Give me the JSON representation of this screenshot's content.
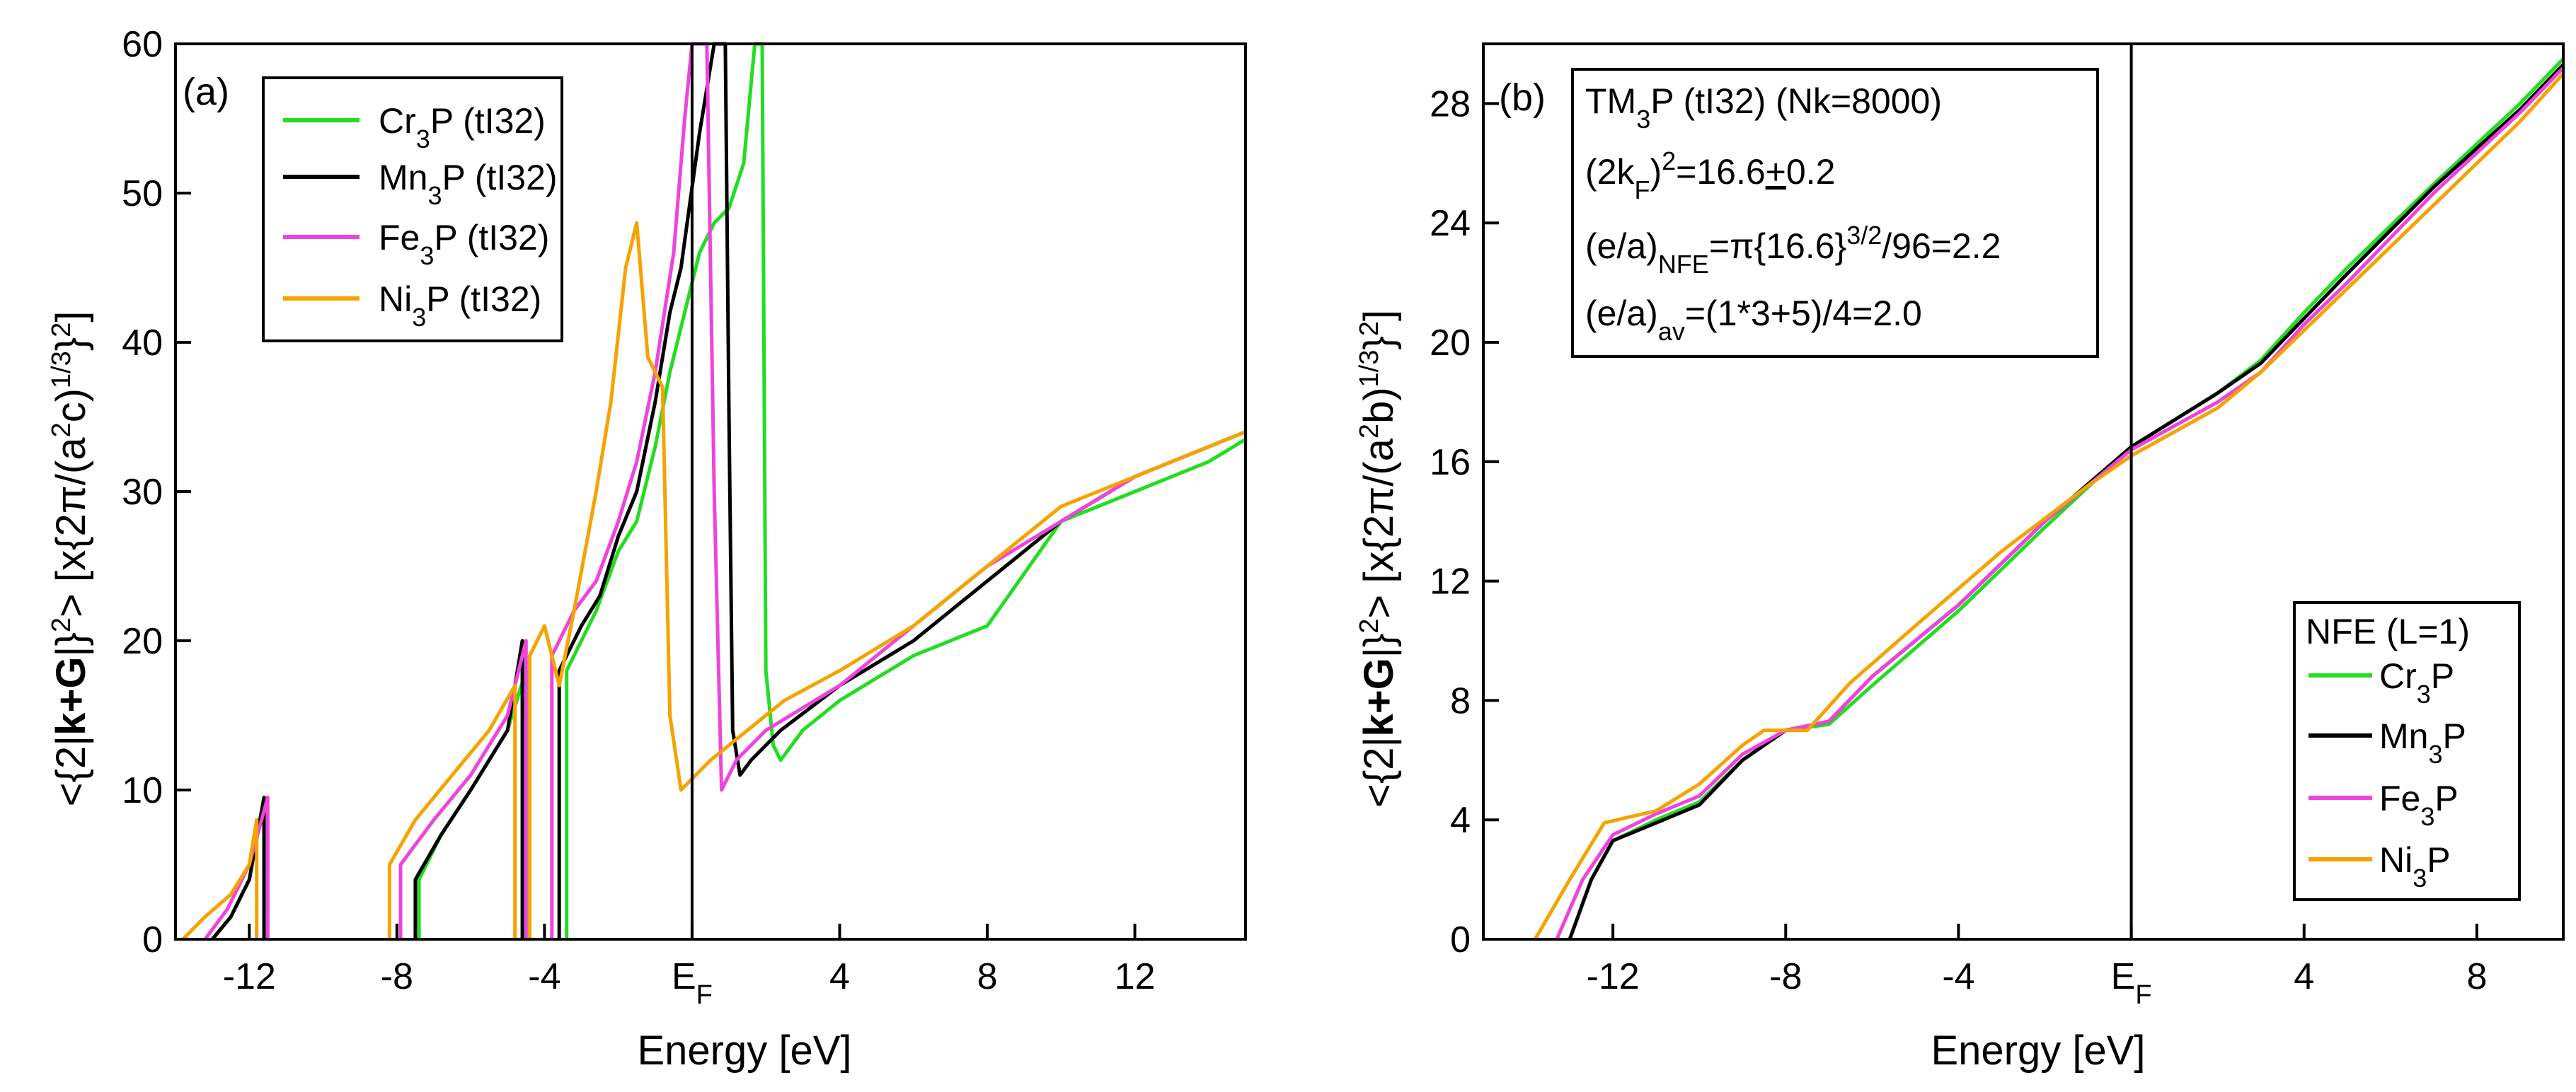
{
  "chart_data": [
    {
      "panel": "(a)",
      "type": "line",
      "xlabel": "Energy [eV]",
      "ylabel": "<{2|k+G|}^2> [x{2π/(a^2c)^1/3}^2]",
      "xlim": [
        -14,
        15
      ],
      "ylim": [
        0,
        60
      ],
      "x_ticks": [
        -12,
        -8,
        -4,
        0,
        4,
        8,
        12
      ],
      "x_tick_labels": [
        "-12",
        "-8",
        "-4",
        "E_F",
        "4",
        "8",
        "12"
      ],
      "y_ticks": [
        0,
        10,
        20,
        30,
        40,
        50,
        60
      ],
      "y_tick_labels": [
        "0",
        "10",
        "20",
        "30",
        "40",
        "50",
        "60"
      ],
      "fermi_line_x": 0,
      "legend": [
        "Cr3P (tI32)",
        "Mn3P (tI32)",
        "Fe3P (tI32)",
        "Ni3P (tI32)"
      ],
      "series": [
        {
          "name": "Cr3P (tI32)",
          "color": "#22dd22",
          "segments": [
            [
              [
                -13.0,
                0
              ],
              [
                -12.5,
                1.5
              ],
              [
                -12.0,
                4
              ],
              [
                -11.6,
                9.5
              ],
              [
                -11.6,
                0
              ]
            ],
            [
              [
                -7.4,
                0
              ],
              [
                -7.4,
                4
              ],
              [
                -6.8,
                7
              ],
              [
                -6.0,
                10
              ],
              [
                -5.0,
                14
              ],
              [
                -4.5,
                18
              ],
              [
                -4.5,
                0
              ]
            ],
            [
              [
                -3.4,
                0
              ],
              [
                -3.4,
                18
              ],
              [
                -3.0,
                20
              ],
              [
                -2.6,
                22
              ],
              [
                -2.0,
                26
              ],
              [
                -1.5,
                28
              ],
              [
                -1.0,
                33
              ],
              [
                -0.6,
                38
              ],
              [
                -0.2,
                42
              ],
              [
                0.2,
                46
              ],
              [
                0.6,
                48
              ],
              [
                1.0,
                49
              ],
              [
                1.4,
                52
              ],
              [
                1.7,
                60
              ],
              [
                1.9,
                60
              ],
              [
                2.0,
                18
              ],
              [
                2.2,
                13
              ],
              [
                2.4,
                12
              ],
              [
                3.0,
                14
              ],
              [
                4.0,
                16
              ],
              [
                6.0,
                19
              ],
              [
                8.0,
                21
              ],
              [
                10.0,
                28
              ],
              [
                12.0,
                30
              ],
              [
                14.0,
                32
              ],
              [
                15.0,
                33.5
              ]
            ]
          ]
        },
        {
          "name": "Mn3P (tI32)",
          "color": "#000000",
          "segments": [
            [
              [
                -13.0,
                0
              ],
              [
                -12.5,
                1.5
              ],
              [
                -12.0,
                4
              ],
              [
                -11.6,
                9.5
              ],
              [
                -11.6,
                0
              ]
            ],
            [
              [
                -7.5,
                0
              ],
              [
                -7.5,
                4
              ],
              [
                -6.8,
                7
              ],
              [
                -6.0,
                10
              ],
              [
                -5.0,
                14
              ],
              [
                -4.6,
                20
              ],
              [
                -4.6,
                0
              ]
            ],
            [
              [
                -3.6,
                0
              ],
              [
                -3.6,
                18
              ],
              [
                -3.0,
                21
              ],
              [
                -2.5,
                23
              ],
              [
                -2.0,
                27
              ],
              [
                -1.5,
                30
              ],
              [
                -1.0,
                36
              ],
              [
                -0.6,
                42
              ],
              [
                -0.3,
                45
              ],
              [
                0.2,
                54
              ],
              [
                0.6,
                60
              ],
              [
                0.9,
                60
              ],
              [
                1.0,
                35
              ],
              [
                1.1,
                14
              ],
              [
                1.3,
                11
              ],
              [
                1.6,
                12
              ],
              [
                2.4,
                14
              ],
              [
                4.0,
                17
              ],
              [
                6.0,
                20
              ],
              [
                8.0,
                24
              ],
              [
                10.0,
                28
              ],
              [
                12.0,
                31
              ],
              [
                14.0,
                33
              ],
              [
                15.0,
                34
              ]
            ]
          ]
        },
        {
          "name": "Fe3P (tI32)",
          "color": "#ee44dd",
          "segments": [
            [
              [
                -13.2,
                0
              ],
              [
                -12.6,
                2
              ],
              [
                -12.0,
                5
              ],
              [
                -11.5,
                9.5
              ],
              [
                -11.5,
                0
              ]
            ],
            [
              [
                -7.9,
                0
              ],
              [
                -7.9,
                5
              ],
              [
                -7.0,
                8
              ],
              [
                -6.0,
                11
              ],
              [
                -5.0,
                15
              ],
              [
                -4.5,
                20
              ],
              [
                -4.5,
                0
              ]
            ],
            [
              [
                -3.8,
                0
              ],
              [
                -3.8,
                19
              ],
              [
                -3.2,
                22
              ],
              [
                -2.6,
                24
              ],
              [
                -2.0,
                28
              ],
              [
                -1.5,
                32
              ],
              [
                -1.0,
                38
              ],
              [
                -0.5,
                46
              ],
              [
                -0.2,
                55
              ],
              [
                0.0,
                60
              ],
              [
                0.4,
                60
              ],
              [
                0.6,
                30
              ],
              [
                0.8,
                10
              ],
              [
                1.2,
                12
              ],
              [
                2.0,
                14
              ],
              [
                4.0,
                17
              ],
              [
                6.0,
                21
              ],
              [
                8.0,
                25
              ],
              [
                10.0,
                28
              ],
              [
                12.0,
                31
              ],
              [
                14.0,
                33
              ],
              [
                15.0,
                34
              ]
            ]
          ]
        },
        {
          "name": "Ni3P (tI32)",
          "color": "#f5a300",
          "segments": [
            [
              [
                -13.8,
                0
              ],
              [
                -13.2,
                1.5
              ],
              [
                -12.5,
                3
              ],
              [
                -12.0,
                5
              ],
              [
                -11.8,
                8
              ],
              [
                -11.8,
                0
              ]
            ],
            [
              [
                -8.2,
                0
              ],
              [
                -8.2,
                5
              ],
              [
                -7.5,
                8
              ],
              [
                -6.5,
                11
              ],
              [
                -5.5,
                14
              ],
              [
                -4.8,
                17
              ],
              [
                -4.8,
                0
              ]
            ],
            [
              [
                -4.4,
                0
              ],
              [
                -4.4,
                19
              ],
              [
                -4.0,
                21
              ],
              [
                -3.6,
                17
              ],
              [
                -3.2,
                22
              ],
              [
                -2.6,
                30
              ],
              [
                -2.2,
                36
              ],
              [
                -1.8,
                45
              ],
              [
                -1.5,
                48
              ],
              [
                -1.2,
                39
              ],
              [
                -0.8,
                37
              ],
              [
                -0.6,
                15
              ],
              [
                -0.3,
                10
              ],
              [
                0.5,
                12
              ],
              [
                1.5,
                14
              ],
              [
                2.5,
                16
              ],
              [
                4.0,
                18
              ],
              [
                6.0,
                21
              ],
              [
                8.0,
                25
              ],
              [
                10.0,
                29
              ],
              [
                12.0,
                31
              ],
              [
                14.0,
                33
              ],
              [
                15.0,
                34
              ]
            ]
          ]
        }
      ]
    },
    {
      "panel": "(b)",
      "type": "line",
      "xlabel": "Energy [eV]",
      "ylabel": "<{2|k+G|}^2> [x{2π/(a^2b)^1/3}^2]",
      "xlim": [
        -15,
        10
      ],
      "ylim": [
        0,
        30
      ],
      "x_ticks": [
        -12,
        -8,
        -4,
        0,
        4,
        8
      ],
      "x_tick_labels": [
        "-12",
        "-8",
        "-4",
        "E_F",
        "4",
        "8"
      ],
      "y_ticks": [
        0,
        4,
        8,
        12,
        16,
        20,
        24,
        28
      ],
      "y_tick_labels": [
        "0",
        "4",
        "8",
        "12",
        "16",
        "20",
        "24",
        "28"
      ],
      "fermi_line_x": 0,
      "info": [
        "TM3P (tI32) (Nk=8000)",
        "(2kF)^2=16.6±0.2",
        "(e/a)NFE=π{16.6}^3/2/96=2.2",
        "(e/a)av=(1*3+5)/4=2.0"
      ],
      "legend_title": "NFE (L=1)",
      "legend": [
        "Cr3P",
        "Mn3P",
        "Fe3P",
        "Ni3P"
      ],
      "series": [
        {
          "name": "Cr3P",
          "color": "#22dd22",
          "points": [
            [
              -13.0,
              0
            ],
            [
              -12.5,
              2
            ],
            [
              -12.0,
              3.3
            ],
            [
              -11.0,
              4
            ],
            [
              -10.0,
              4.6
            ],
            [
              -9.0,
              6
            ],
            [
              -8.0,
              7
            ],
            [
              -7.0,
              7.2
            ],
            [
              -6.0,
              8.5
            ],
            [
              -4.0,
              11
            ],
            [
              -2.0,
              13.8
            ],
            [
              0.0,
              16.5
            ],
            [
              2.0,
              18.3
            ],
            [
              3.0,
              19.4
            ],
            [
              4.0,
              21
            ],
            [
              5.0,
              22.5
            ],
            [
              7.0,
              25.3
            ],
            [
              9.0,
              28
            ],
            [
              10.0,
              29.5
            ]
          ]
        },
        {
          "name": "Mn3P",
          "color": "#000000",
          "points": [
            [
              -13.0,
              0
            ],
            [
              -12.5,
              2
            ],
            [
              -12.0,
              3.3
            ],
            [
              -11.0,
              3.9
            ],
            [
              -10.0,
              4.5
            ],
            [
              -9.0,
              6
            ],
            [
              -8.0,
              7
            ],
            [
              -7.0,
              7.3
            ],
            [
              -6.0,
              8.8
            ],
            [
              -4.0,
              11.2
            ],
            [
              -2.0,
              14
            ],
            [
              0.0,
              16.5
            ],
            [
              2.0,
              18.3
            ],
            [
              3.0,
              19.3
            ],
            [
              4.0,
              20.8
            ],
            [
              5.0,
              22.3
            ],
            [
              7.0,
              25.2
            ],
            [
              9.0,
              27.8
            ],
            [
              10.0,
              29.3
            ]
          ]
        },
        {
          "name": "Fe3P",
          "color": "#ee44dd",
          "points": [
            [
              -13.3,
              0
            ],
            [
              -12.7,
              2
            ],
            [
              -12.0,
              3.5
            ],
            [
              -11.0,
              4.2
            ],
            [
              -10.0,
              4.8
            ],
            [
              -9.0,
              6.2
            ],
            [
              -8.0,
              7
            ],
            [
              -7.0,
              7.3
            ],
            [
              -6.0,
              8.8
            ],
            [
              -4.0,
              11.2
            ],
            [
              -2.0,
              14
            ],
            [
              0.0,
              16.4
            ],
            [
              2.0,
              18
            ],
            [
              3.0,
              19
            ],
            [
              4.0,
              20.6
            ],
            [
              5.0,
              22
            ],
            [
              7.0,
              25
            ],
            [
              9.0,
              27.7
            ],
            [
              10.0,
              29.2
            ]
          ]
        },
        {
          "name": "Ni3P",
          "color": "#f5a300",
          "points": [
            [
              -13.8,
              0
            ],
            [
              -13.0,
              2
            ],
            [
              -12.2,
              3.9
            ],
            [
              -11.0,
              4.3
            ],
            [
              -10.0,
              5.2
            ],
            [
              -9.0,
              6.5
            ],
            [
              -8.5,
              7
            ],
            [
              -7.5,
              7
            ],
            [
              -6.5,
              8.6
            ],
            [
              -5.0,
              10.5
            ],
            [
              -3.0,
              13
            ],
            [
              -1.0,
              15.2
            ],
            [
              0.0,
              16.2
            ],
            [
              2.0,
              17.8
            ],
            [
              3.0,
              19
            ],
            [
              4.0,
              20.4
            ],
            [
              5.0,
              21.8
            ],
            [
              7.0,
              24.6
            ],
            [
              9.0,
              27.4
            ],
            [
              10.0,
              29
            ]
          ]
        }
      ]
    }
  ]
}
